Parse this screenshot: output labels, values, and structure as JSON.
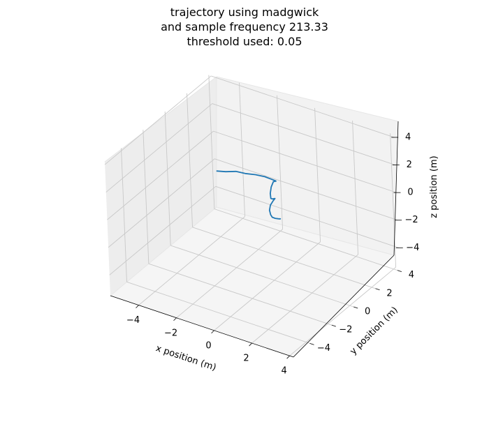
{
  "chart_data": {
    "type": "line",
    "projection": "3d",
    "title_lines": [
      "trajectory using madgwick",
      "and sample frequency 213.33",
      "threshold used: 0.05"
    ],
    "xlabel": "x position (m)",
    "ylabel": "y position (m)",
    "zlabel": "z position (m)",
    "xlim": [
      -5.5,
      4.2
    ],
    "ylim": [
      -5.5,
      4.2
    ],
    "zlim": [
      -5.5,
      4.2
    ],
    "x_ticks": [
      -4,
      -2,
      0,
      2,
      4
    ],
    "y_ticks": [
      -4,
      -2,
      0,
      2,
      4
    ],
    "z_ticks": [
      -4,
      -2,
      0,
      2,
      4
    ],
    "x_tick_labels": [
      "−4",
      "−2",
      "0",
      "2",
      "4"
    ],
    "y_tick_labels": [
      "−4",
      "−2",
      "0",
      "2",
      "4"
    ],
    "z_tick_labels": [
      "−4",
      "−2",
      "0",
      "2",
      "4"
    ],
    "grid": true,
    "line_color": "#1f77b4",
    "pane_color": "#f2f2f2",
    "grid_color": "#c8c8c8",
    "series": [
      {
        "x": [
          -0.8,
          -0.55,
          -0.3,
          -0.05,
          0.2,
          0.45,
          0.6,
          0.65,
          0.55,
          0.35,
          0.25,
          0.25,
          0.3,
          0.35,
          0.4,
          0.3,
          0.2,
          0.2,
          0.25,
          0.3,
          0.4,
          0.5,
          0.55,
          0.5
        ],
        "y": [
          -3.4,
          -3.0,
          -2.5,
          -2.1,
          -1.6,
          -1.2,
          -0.9,
          -0.6,
          -0.4,
          -0.3,
          -0.35,
          -0.45,
          -0.5,
          -0.45,
          -0.3,
          -0.3,
          -0.4,
          -0.5,
          -0.5,
          -0.45,
          -0.35,
          -0.25,
          -0.15,
          -0.2
        ],
        "z": [
          4.3,
          4.1,
          3.9,
          3.6,
          3.3,
          3.0,
          2.7,
          2.4,
          2.2,
          2.0,
          1.6,
          1.2,
          0.9,
          0.85,
          0.8,
          0.6,
          0.3,
          0.0,
          -0.3,
          -0.5,
          -0.6,
          -0.65,
          -0.7,
          -0.7
        ]
      }
    ]
  }
}
